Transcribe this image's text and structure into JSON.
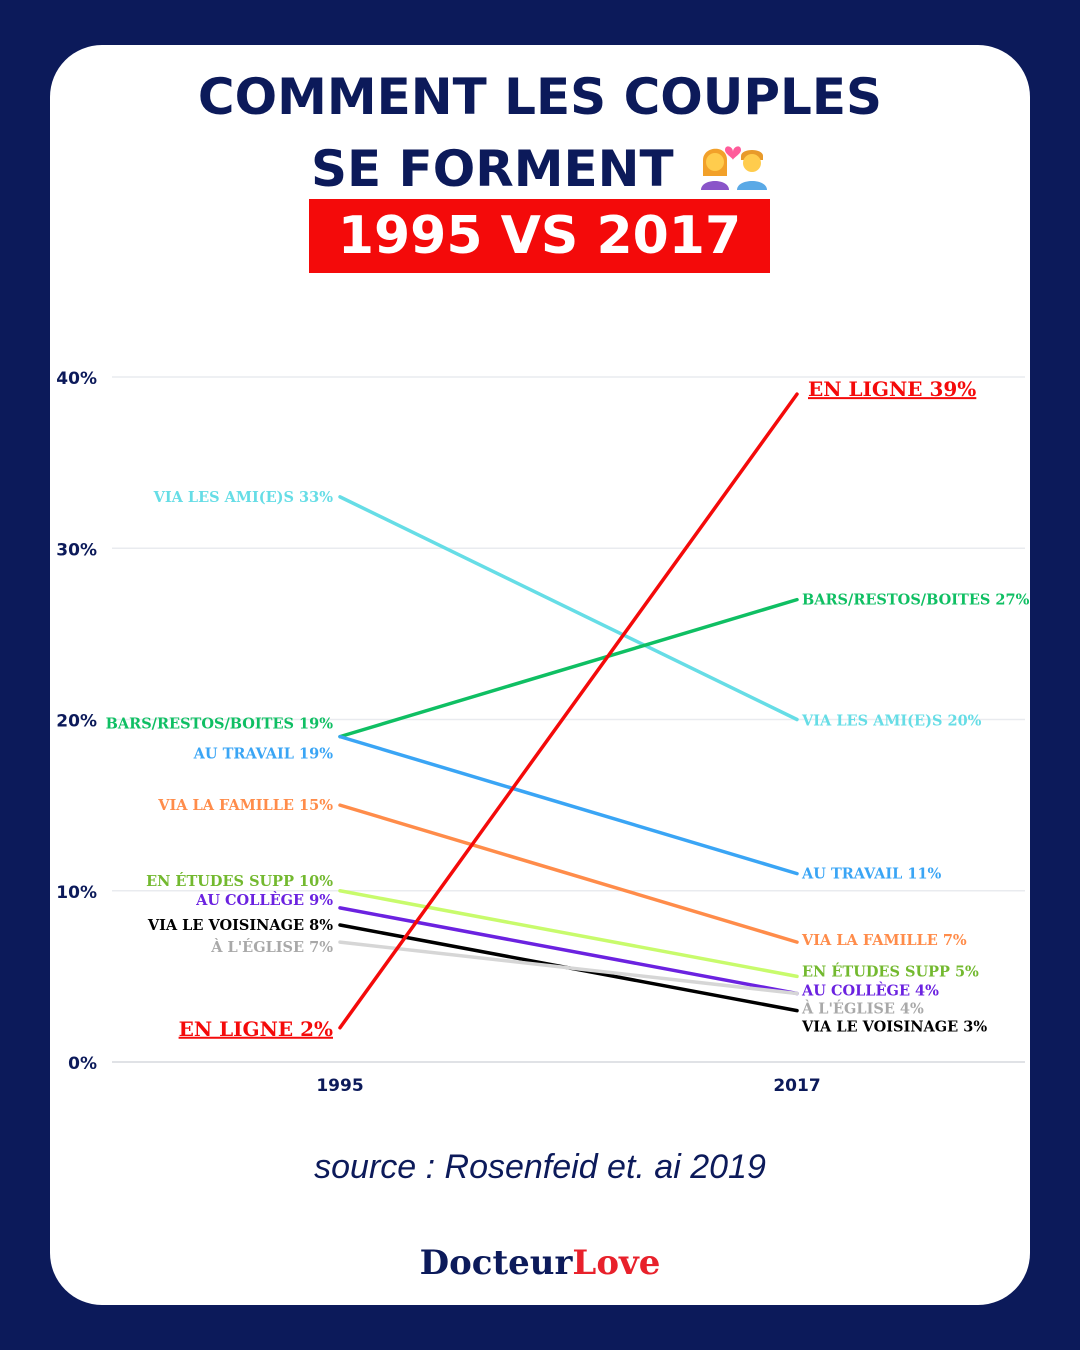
{
  "title": {
    "line1": "COMMENT LES COUPLES",
    "line2": "SE FORMENT",
    "emoji": "couple-with-heart-emoji",
    "badge": "1995 VS 2017"
  },
  "colors": {
    "background": "#0c1a5a",
    "accent": "#f40a0a"
  },
  "chart_data": {
    "type": "line",
    "categories": [
      "1995",
      "2017"
    ],
    "ylim": [
      0,
      40
    ],
    "yticks": [
      0,
      10,
      20,
      30,
      40
    ],
    "ytick_labels": [
      "0%",
      "10%",
      "20%",
      "30%",
      "40%"
    ],
    "grid": true,
    "series": [
      {
        "name": "VIA LES AMI(E)S",
        "values": [
          33,
          20
        ],
        "color": "#66dde6",
        "label_start": "VIA LES AMI(E)S 33%",
        "label_end": "VIA LES AMI(E)S 20%"
      },
      {
        "name": "BARS/RESTOS/BOITES",
        "values": [
          19,
          27
        ],
        "color": "#0fbf63",
        "label_start": "BARS/RESTOS/BOITES 19%",
        "label_end": "BARS/RESTOS/BOITES 27%"
      },
      {
        "name": "AU TRAVAIL",
        "values": [
          19,
          11
        ],
        "color": "#3aa5f5",
        "label_start": "AU TRAVAIL 19%",
        "label_end": "AU TRAVAIL 11%"
      },
      {
        "name": "VIA LA FAMILLE",
        "values": [
          15,
          7
        ],
        "color": "#ff8c4a",
        "label_start": "VIA LA FAMILLE 15%",
        "label_end": "VIA LA FAMILLE 7%"
      },
      {
        "name": "EN ÉTUDES SUPP",
        "values": [
          10,
          5
        ],
        "color": "#c8fb6c",
        "label_color": "#73b92f",
        "label_start": "EN ÉTUDES SUPP 10%",
        "label_end": "EN ÉTUDES SUPP 5%"
      },
      {
        "name": "AU COLLÈGE",
        "values": [
          9,
          4
        ],
        "color": "#6b22e0",
        "label_start": "AU COLLÈGE 9%",
        "label_end": "AU COLLÈGE 4%"
      },
      {
        "name": "VIA LE VOISINAGE",
        "values": [
          8,
          3
        ],
        "color": "#000000",
        "label_start": "VIA LE VOISINAGE 8%",
        "label_end": "VIA LE VOISINAGE 3%"
      },
      {
        "name": "À L'ÉGLISE",
        "values": [
          7,
          4
        ],
        "color": "#d6d6d6",
        "label_color": "#a9a9a9",
        "label_start": "À L'ÉGLISE 7%",
        "label_end": "À L'ÉGLISE 4%"
      },
      {
        "name": "EN LIGNE",
        "values": [
          2,
          39
        ],
        "color": "#f40a0a",
        "label_start": "EN LIGNE 2%",
        "label_end": "EN LIGNE 39%",
        "emphasis": true
      }
    ]
  },
  "source": "source : Rosenfeid et. ai 2019",
  "brand": {
    "part1": "Docteur",
    "part2": "Love"
  }
}
